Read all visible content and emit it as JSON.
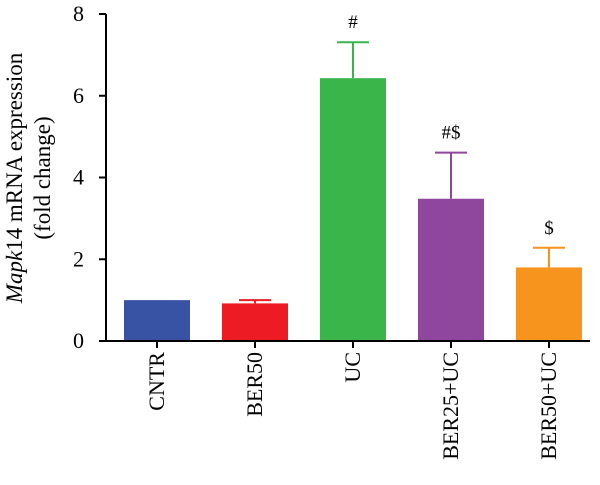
{
  "chart_data": {
    "type": "bar",
    "title": "",
    "xlabel": "",
    "ylabel_gene": "Mapk",
    "ylabel_rest": "14 mRNA expression",
    "ylabel_line2": "(fold change)",
    "ylim": [
      0,
      8
    ],
    "yticks": [
      0,
      2,
      4,
      6,
      8
    ],
    "categories": [
      "CNTR",
      "BER50",
      "UC",
      "BER25+UC",
      "BER50+UC"
    ],
    "values": [
      1.0,
      0.92,
      6.43,
      3.48,
      1.8
    ],
    "errors": [
      0.0,
      0.08,
      0.88,
      1.13,
      0.48
    ],
    "annotations": [
      "",
      "",
      "#",
      "#$",
      "$"
    ],
    "colors": [
      "#3953a4",
      "#ed1c24",
      "#39b54a",
      "#8e479c",
      "#f7941d"
    ],
    "grid": false,
    "legend": "none"
  }
}
